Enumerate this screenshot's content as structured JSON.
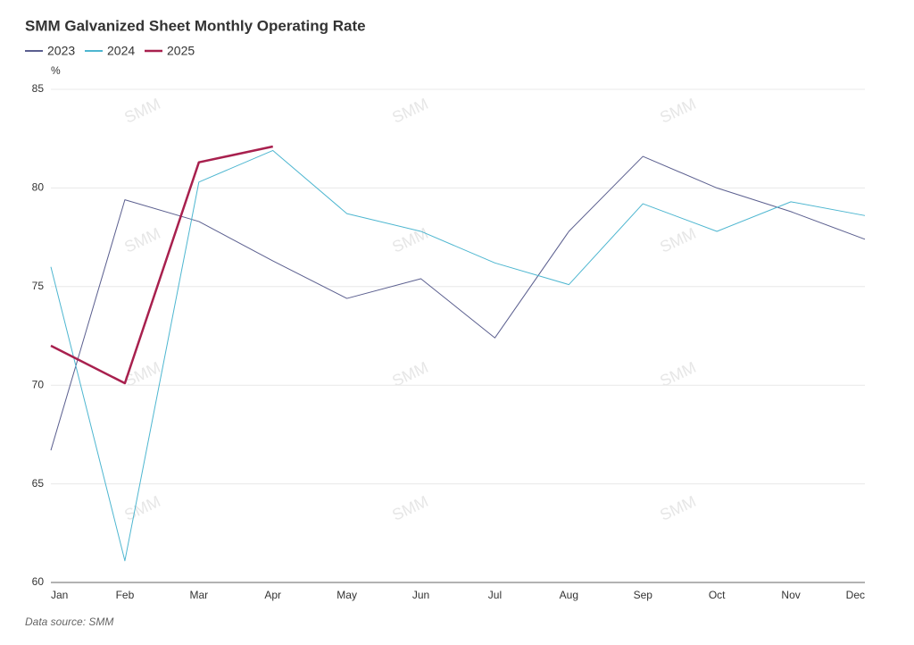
{
  "chart_data": {
    "type": "line",
    "title": "SMM Galvanized Sheet Monthly Operating Rate",
    "y_unit": "%",
    "source": "Data source:  SMM",
    "watermark": "SMM",
    "categories": [
      "Jan",
      "Feb",
      "Mar",
      "Apr",
      "May",
      "Jun",
      "Jul",
      "Aug",
      "Sep",
      "Oct",
      "Nov",
      "Dec"
    ],
    "series": [
      {
        "name": "2023",
        "color": "#5b5f8f",
        "width": 1,
        "values": [
          66.7,
          79.4,
          78.3,
          76.3,
          74.4,
          75.4,
          72.4,
          77.8,
          81.6,
          80.0,
          78.8,
          77.4
        ]
      },
      {
        "name": "2024",
        "color": "#4db6d0",
        "width": 1,
        "values": [
          76.0,
          61.1,
          80.3,
          81.9,
          78.7,
          77.8,
          76.2,
          75.1,
          79.2,
          77.8,
          79.3,
          78.6
        ]
      },
      {
        "name": "2025",
        "color": "#a8204e",
        "width": 2.5,
        "values": [
          72.0,
          70.1,
          81.3,
          82.1,
          null,
          null,
          null,
          null,
          null,
          null,
          null,
          null
        ]
      }
    ],
    "ylim": [
      60,
      85
    ],
    "yticks": [
      60,
      65,
      70,
      75,
      80,
      85
    ],
    "grid": true,
    "legend": "top-left"
  }
}
